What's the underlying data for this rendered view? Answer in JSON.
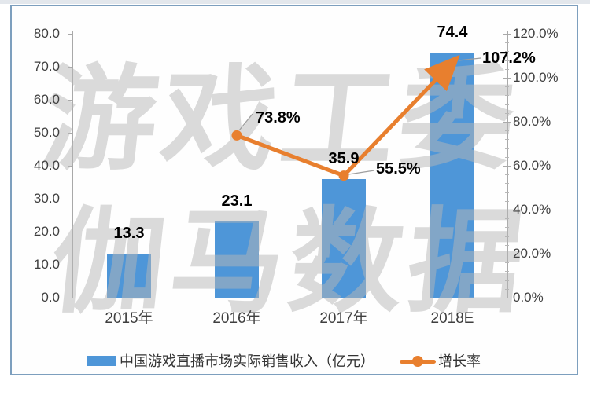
{
  "watermark": {
    "line1": "游戏工委",
    "line2": "伽马数据"
  },
  "legend": {
    "bar_label": "中国游戏直播市场实际销售收入（亿元）",
    "line_label": "增长率"
  },
  "colors": {
    "bar": "#4E96D8",
    "line": "#E87F2E",
    "frame": "#7D9FBE",
    "axis": "#A9A9A9",
    "data_label": "#000000",
    "watermark": "#B5B5B5"
  },
  "chart_data": {
    "type": "combo-bar-line",
    "title": "",
    "xlabel": "",
    "ylabel_left": "",
    "ylabel_right": "",
    "gridlines": false,
    "legend_position": "bottom",
    "categories": [
      "2015年",
      "2016年",
      "2017年",
      "2018E"
    ],
    "series": [
      {
        "name": "中国游戏直播市场实际销售收入（亿元）",
        "type": "bar",
        "axis": "left",
        "values": [
          13.3,
          23.1,
          35.9,
          74.4
        ],
        "data_labels": [
          "13.3",
          "23.1",
          "35.9",
          "74.4"
        ],
        "color": "#4E96D8"
      },
      {
        "name": "增长率",
        "type": "line",
        "axis": "right",
        "values": [
          null,
          73.8,
          55.5,
          107.2
        ],
        "data_labels": [
          "",
          "73.8%",
          "55.5%",
          "107.2%"
        ],
        "color": "#E87F2E",
        "end_marker": "arrow"
      }
    ],
    "axis_left": {
      "min": 0,
      "max": 80,
      "step": 10,
      "tick_labels": [
        "80.0",
        "70.0",
        "60.0",
        "50.0",
        "40.0",
        "30.0",
        "20.0",
        "10.0",
        "0.0"
      ]
    },
    "axis_right": {
      "min": 0,
      "max": 120,
      "step": 20,
      "tick_labels": [
        "120.0%",
        "100.0%",
        "80.0%",
        "60.0%",
        "40.0%",
        "20.0%",
        "0.0%"
      ]
    }
  }
}
